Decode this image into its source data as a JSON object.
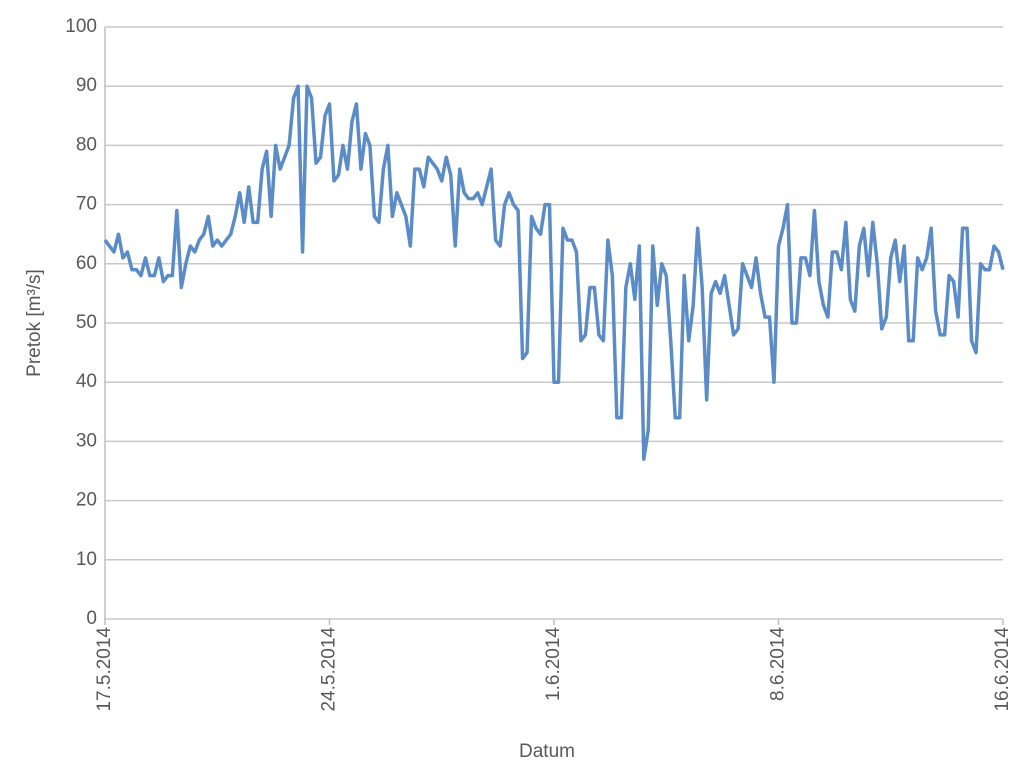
{
  "chart_data": {
    "type": "line",
    "x_label": "Datum",
    "y_label": "Pretok [m³/s]",
    "color": "#5b8cc8",
    "grid": true,
    "ylim": [
      0,
      100
    ],
    "yticks": [
      0,
      10,
      20,
      30,
      40,
      50,
      60,
      70,
      80,
      90,
      100
    ],
    "categories": [
      "17.5.2014",
      null,
      null,
      null,
      null,
      null,
      null,
      null,
      null,
      null,
      null,
      null,
      null,
      null,
      null,
      null,
      null,
      null,
      null,
      null,
      null,
      null,
      null,
      null,
      null,
      null,
      null,
      null,
      null,
      null,
      null,
      null,
      null,
      null,
      null,
      null,
      null,
      null,
      null,
      null,
      null,
      null,
      null,
      null,
      null,
      null,
      null,
      null,
      null,
      null,
      "24.5.2014",
      null,
      null,
      null,
      null,
      null,
      null,
      null,
      null,
      null,
      null,
      null,
      null,
      null,
      null,
      null,
      null,
      null,
      null,
      null,
      null,
      null,
      null,
      null,
      null,
      null,
      null,
      null,
      null,
      null,
      null,
      null,
      null,
      null,
      null,
      null,
      null,
      null,
      null,
      null,
      null,
      null,
      null,
      null,
      null,
      null,
      null,
      null,
      null,
      null,
      "1.6.2014",
      null,
      null,
      null,
      null,
      null,
      null,
      null,
      null,
      null,
      null,
      null,
      null,
      null,
      null,
      null,
      null,
      null,
      null,
      null,
      null,
      null,
      null,
      null,
      null,
      null,
      null,
      null,
      null,
      null,
      null,
      null,
      null,
      null,
      null,
      null,
      null,
      null,
      null,
      null,
      null,
      null,
      null,
      null,
      null,
      null,
      null,
      null,
      null,
      null,
      "8.6.2014",
      null,
      null,
      null,
      null,
      null,
      null,
      null,
      null,
      null,
      null,
      null,
      null,
      null,
      null,
      null,
      null,
      null,
      null,
      null,
      null,
      null,
      null,
      null,
      null,
      null,
      null,
      null,
      null,
      null,
      null,
      null,
      null,
      null,
      null,
      null,
      null,
      null,
      null,
      null,
      null,
      null,
      null,
      null,
      null,
      null,
      null,
      null,
      null,
      null,
      "16.6.2014"
    ],
    "values": [
      64,
      63,
      62,
      65,
      61,
      62,
      59,
      59,
      58,
      61,
      58,
      58,
      61,
      57,
      58,
      58,
      69,
      56,
      60,
      63,
      62,
      64,
      65,
      68,
      63,
      64,
      63,
      64,
      65,
      68,
      72,
      67,
      73,
      67,
      67,
      76,
      79,
      68,
      80,
      76,
      78,
      80,
      88,
      90,
      62,
      90,
      88,
      77,
      78,
      85,
      87,
      74,
      75,
      80,
      76,
      84,
      87,
      76,
      82,
      80,
      68,
      67,
      76,
      80,
      68,
      72,
      70,
      68,
      63,
      76,
      76,
      73,
      78,
      77,
      76,
      74,
      78,
      75,
      63,
      76,
      72,
      71,
      71,
      72,
      70,
      73,
      76,
      64,
      63,
      70,
      72,
      70,
      69,
      44,
      45,
      68,
      66,
      65,
      70,
      70,
      40,
      40,
      66,
      64,
      64,
      62,
      47,
      48,
      56,
      56,
      48,
      47,
      64,
      58,
      34,
      34,
      56,
      60,
      54,
      63,
      27,
      32,
      63,
      53,
      60,
      58,
      47,
      34,
      34,
      58,
      47,
      53,
      66,
      56,
      37,
      55,
      57,
      55,
      58,
      53,
      48,
      49,
      60,
      58,
      56,
      61,
      55,
      51,
      51,
      40,
      63,
      66,
      70,
      50,
      50,
      61,
      61,
      58,
      69,
      57,
      53,
      51,
      62,
      62,
      59,
      67,
      54,
      52,
      63,
      66,
      58,
      67,
      60,
      49,
      51,
      61,
      64,
      57,
      63,
      47,
      47,
      61,
      59,
      61,
      66,
      52,
      48,
      48,
      58,
      57,
      51,
      66,
      66,
      47,
      45,
      60,
      59,
      59,
      63,
      62,
      59
    ]
  }
}
